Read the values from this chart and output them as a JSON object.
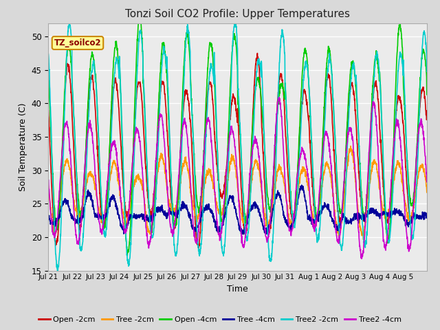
{
  "title": "Tonzi Soil CO2 Profile: Upper Temperatures",
  "xlabel": "Time",
  "ylabel": "Soil Temperature (C)",
  "ylim": [
    15,
    52
  ],
  "yticks": [
    15,
    20,
    25,
    30,
    35,
    40,
    45,
    50
  ],
  "x_labels": [
    "Jul 21",
    "Jul 22",
    "Jul 23",
    "Jul 24",
    "Jul 25",
    "Jul 26",
    "Jul 27",
    "Jul 28",
    "Jul 29",
    "Jul 30",
    "Jul 31",
    "Aug 1",
    "Aug 2",
    "Aug 3",
    "Aug 4",
    "Aug 5"
  ],
  "n_days": 16,
  "label_box_text": "TZ_soilco2",
  "label_box_color": "#ffff99",
  "label_box_border": "#cc8800",
  "series_names": [
    "Open -2cm",
    "Tree -2cm",
    "Open -4cm",
    "Tree -4cm",
    "Tree2 -2cm",
    "Tree2 -4cm"
  ],
  "series_colors": [
    "#cc0000",
    "#ff9900",
    "#00cc00",
    "#000099",
    "#00cccc",
    "#cc00cc"
  ],
  "series_lw": [
    1.2,
    1.2,
    1.2,
    1.2,
    1.2,
    1.2
  ],
  "series_peak": [
    43,
    31,
    49,
    24.5,
    49,
    37
  ],
  "series_trough": [
    22,
    22,
    22,
    22,
    18,
    20
  ],
  "series_phase": [
    0.0,
    0.05,
    -0.03,
    0.12,
    -0.06,
    0.08
  ],
  "bg_color": "#d9d9d9",
  "plot_bg": "#ebebeb",
  "grid_color": "#ffffff",
  "n_points": 2000
}
